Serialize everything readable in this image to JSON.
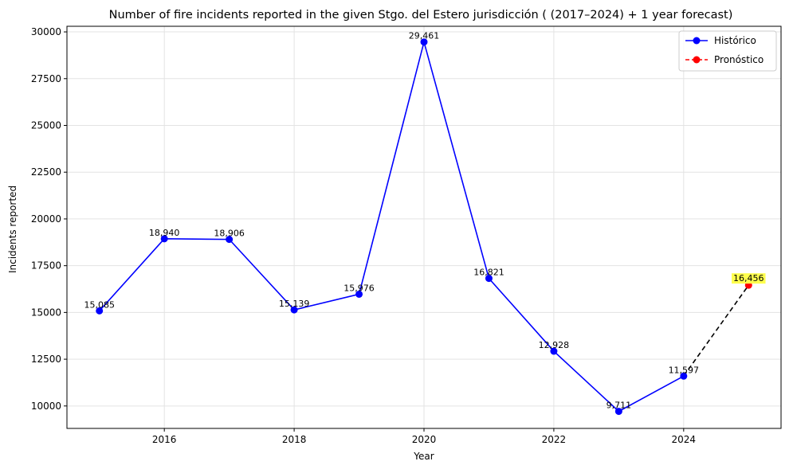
{
  "chart_data": {
    "type": "line",
    "title": "Number of fire incidents reported in the given Stgo. del Estero jurisdicción  ( (2017–2024)  + 1 year forecast)",
    "xlabel": "Year",
    "ylabel": "Incidents reported",
    "xlim": [
      2014.5,
      2025.5
    ],
    "ylim": [
      8800,
      30300
    ],
    "xticks": [
      2016,
      2018,
      2020,
      2022,
      2024
    ],
    "yticks": [
      10000,
      12500,
      15000,
      17500,
      20000,
      22500,
      25000,
      27500,
      30000
    ],
    "grid": true,
    "legend_position": "top-right",
    "series": [
      {
        "name": "Histórico",
        "color": "#0000ff",
        "line_style": "solid",
        "x": [
          2015,
          2016,
          2017,
          2018,
          2019,
          2020,
          2021,
          2022,
          2023,
          2024
        ],
        "y": [
          15085,
          18940,
          18906,
          15139,
          15976,
          29461,
          16821,
          12928,
          9711,
          11597
        ],
        "labels": [
          "15,085",
          "18,940",
          "18,906",
          "15,139",
          "15,976",
          "29,461",
          "16,821",
          "12,928",
          "9,711",
          "11,597"
        ]
      },
      {
        "name": "Pronóstico",
        "color": "#ff0000",
        "line_style": "dashed",
        "x": [
          2025
        ],
        "y": [
          16456
        ],
        "labels": [
          "16,456"
        ]
      }
    ],
    "forecast_connector": {
      "color": "#000000",
      "line_style": "dashed",
      "from": [
        2024,
        11597
      ],
      "to": [
        2025,
        16456
      ]
    },
    "highlight_color": "#ffff4d"
  }
}
